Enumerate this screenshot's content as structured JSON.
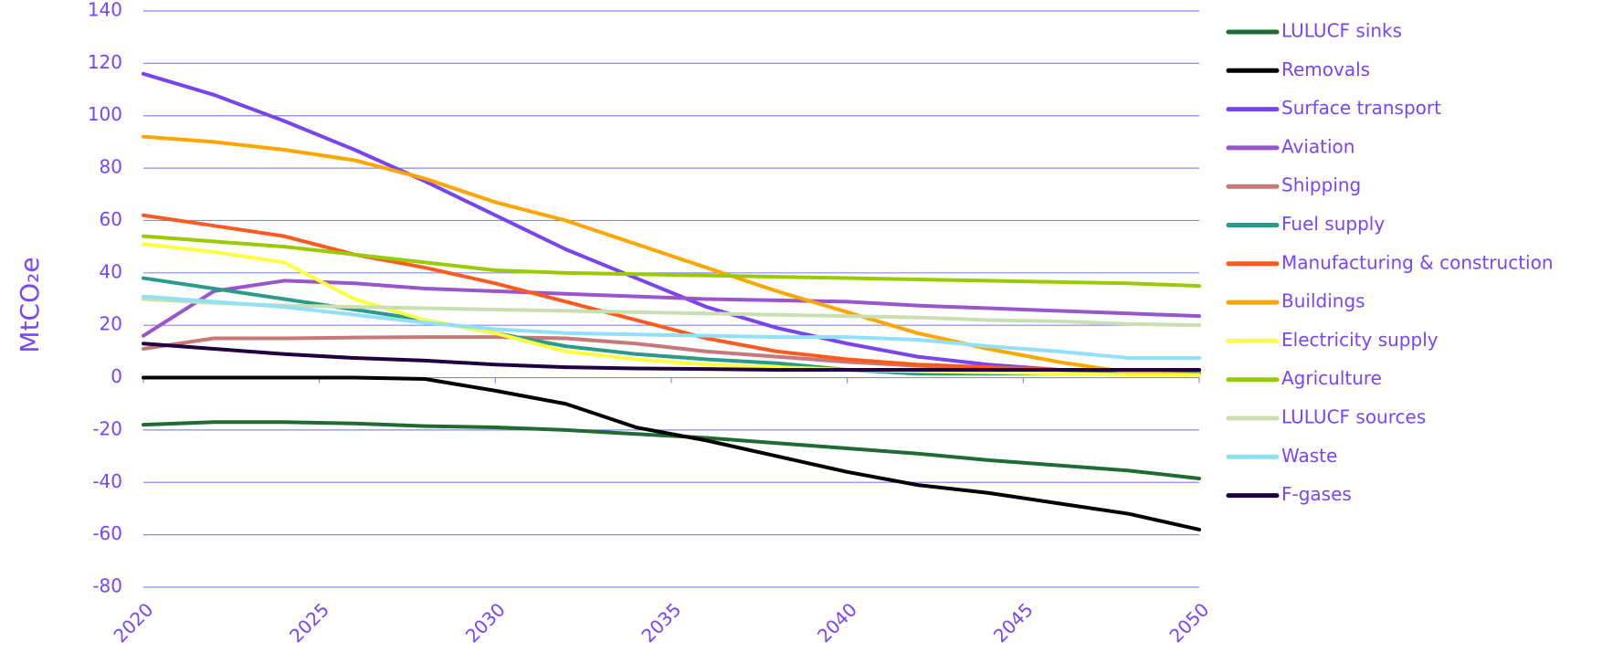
{
  "chart_data": {
    "type": "line",
    "y_label": "MtCO₂e",
    "x": [
      2020,
      2022,
      2024,
      2026,
      2028,
      2030,
      2032,
      2034,
      2036,
      2038,
      2040,
      2042,
      2044,
      2046,
      2048,
      2050
    ],
    "xlim": [
      2020,
      2050
    ],
    "xticks": [
      2020,
      2025,
      2030,
      2035,
      2040,
      2045,
      2050
    ],
    "ylim": [
      -80,
      140
    ],
    "yticks": [
      -80,
      -60,
      -40,
      -20,
      0,
      20,
      40,
      60,
      80,
      100,
      120,
      140
    ],
    "grid": true,
    "legend": "right",
    "series": [
      {
        "name": "LULUCF sinks",
        "color": "#1f6b32",
        "values": [
          -18,
          -17,
          -17,
          -17.5,
          -18.5,
          -19,
          -20,
          -21.5,
          -23,
          -25,
          -27,
          -29,
          -31.5,
          -33.5,
          -35.5,
          -38.5
        ]
      },
      {
        "name": "Removals",
        "color": "#000000",
        "values": [
          0,
          0,
          0,
          0,
          -0.5,
          -5,
          -10,
          -19,
          -24,
          -30,
          -36,
          -41,
          -44,
          -48,
          -52,
          -58
        ]
      },
      {
        "name": "Surface transport",
        "color": "#7744ee",
        "values": [
          116,
          108,
          98,
          87,
          75,
          62,
          49,
          38,
          27,
          19,
          13,
          8,
          5,
          3,
          2,
          1.5
        ]
      },
      {
        "name": "Aviation",
        "color": "#9955cc",
        "values": [
          16,
          33,
          37,
          36,
          34,
          33,
          32,
          31,
          30,
          29.5,
          29,
          27.5,
          26.5,
          25.5,
          24.5,
          23.5
        ]
      },
      {
        "name": "Shipping",
        "color": "#c87878",
        "values": [
          11,
          15,
          15,
          15.3,
          15.5,
          15.5,
          15,
          13,
          10,
          8,
          6,
          4.5,
          3.5,
          3,
          2.5,
          2.5
        ]
      },
      {
        "name": "Fuel supply",
        "color": "#2a9a8a",
        "values": [
          38,
          34,
          30,
          26,
          22,
          17,
          12,
          9,
          7,
          5.5,
          3,
          1.5,
          1.5,
          1.5,
          1.5,
          1.5
        ]
      },
      {
        "name": "Manufacturing & construction",
        "color": "#ff5a1e",
        "values": [
          62,
          58,
          54,
          47,
          42,
          36,
          29,
          22,
          15,
          10,
          7,
          5,
          4,
          3,
          3,
          3
        ]
      },
      {
        "name": "Buildings",
        "color": "#ffa500",
        "values": [
          92,
          90,
          87,
          83,
          76,
          67,
          60,
          51,
          42,
          33,
          25,
          17,
          11,
          6,
          2,
          1
        ]
      },
      {
        "name": "Electricity supply",
        "color": "#ffff40",
        "values": [
          51,
          48,
          44,
          30,
          22,
          17,
          10,
          7,
          5,
          4,
          3,
          2.5,
          2,
          1.5,
          1,
          1
        ]
      },
      {
        "name": "Agriculture",
        "color": "#99cc00",
        "values": [
          54,
          52,
          50,
          47,
          44,
          41,
          40,
          39.5,
          39,
          38.5,
          38,
          37.5,
          37,
          36.5,
          36,
          35
        ]
      },
      {
        "name": "LULUCF sources",
        "color": "#c8e0b0",
        "values": [
          30,
          28.5,
          27.5,
          27,
          26.5,
          26,
          25.5,
          25,
          24.5,
          24,
          23.5,
          23,
          22,
          21.5,
          20.5,
          20
        ]
      },
      {
        "name": "Waste",
        "color": "#90e0f8",
        "values": [
          31,
          29,
          27,
          24,
          21,
          18.5,
          17,
          16.5,
          16,
          15.5,
          15.5,
          14.5,
          12,
          10,
          7.5,
          7.5
        ]
      },
      {
        "name": "F-gases",
        "color": "#200040",
        "values": [
          13,
          11,
          9,
          7.5,
          6.5,
          5,
          4,
          3.5,
          3.3,
          3,
          3,
          3,
          3,
          3,
          3,
          3
        ]
      }
    ]
  }
}
